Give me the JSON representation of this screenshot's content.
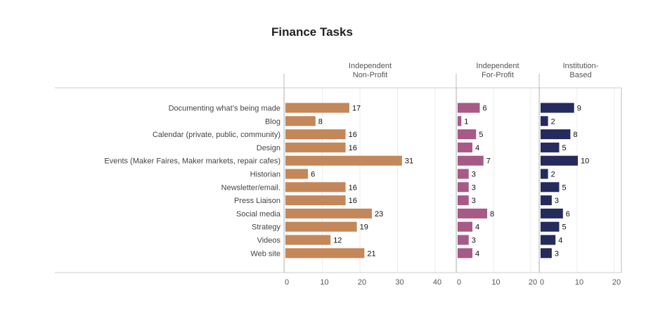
{
  "chart_data": {
    "type": "bar",
    "orientation": "horizontal",
    "title": "Finance Tasks",
    "categories": [
      "Documenting what’s being made",
      "Blog",
      "Calendar (private, public, community)",
      "Design",
      "Events (Maker Faires, Maker markets, repair cafes)",
      "Historian",
      "Newsletter/email.",
      "Press Liaison",
      "Social media",
      "Strategy",
      "Videos",
      "Web site"
    ],
    "series": [
      {
        "name": "Independent Non-Profit",
        "header_lines": [
          "Independent",
          "Non-Profit"
        ],
        "color": "#c4875a",
        "values": [
          17,
          8,
          16,
          16,
          31,
          6,
          16,
          16,
          23,
          19,
          12,
          21
        ],
        "xlim": [
          0,
          45
        ],
        "ticks": [
          0,
          10,
          20,
          30,
          40
        ]
      },
      {
        "name": "Independent For-Profit",
        "header_lines": [
          "Independent",
          "For-Profit"
        ],
        "color": "#a85a86",
        "values": [
          6,
          1,
          5,
          4,
          7,
          3,
          3,
          3,
          8,
          4,
          3,
          4
        ],
        "xlim": [
          0,
          22
        ],
        "ticks": [
          0,
          10,
          20
        ]
      },
      {
        "name": "Institution-Based",
        "header_lines": [
          "Institution-",
          "Based"
        ],
        "color": "#262b5e",
        "values": [
          9,
          2,
          8,
          5,
          10,
          2,
          5,
          3,
          6,
          5,
          4,
          3
        ],
        "xlim": [
          0,
          22
        ],
        "ticks": [
          0,
          10,
          20
        ]
      }
    ],
    "grid": true,
    "legend": "none"
  }
}
